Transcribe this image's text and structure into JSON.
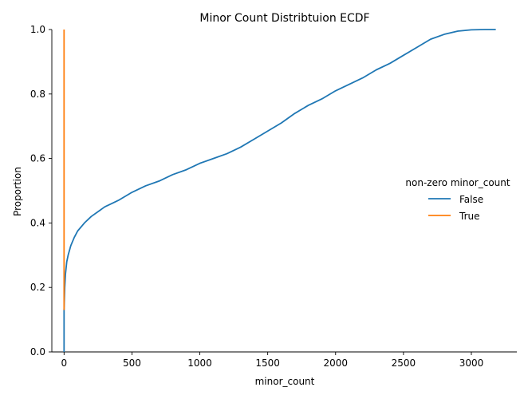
{
  "chart_data": {
    "type": "line",
    "title": "Minor Count Distribtuion ECDF",
    "xlabel": "minor_count",
    "ylabel": "Proportion",
    "xlim": [
      -90,
      3335
    ],
    "ylim": [
      0,
      1
    ],
    "x_ticks": [
      0,
      500,
      1000,
      1500,
      2000,
      2500,
      3000
    ],
    "y_ticks": [
      0.0,
      0.2,
      0.4,
      0.6,
      0.8,
      1.0
    ],
    "x_tick_labels": [
      "0",
      "500",
      "1000",
      "1500",
      "2000",
      "2500",
      "3000"
    ],
    "y_tick_labels": [
      "0.0",
      "0.2",
      "0.4",
      "0.6",
      "0.8",
      "1.0"
    ],
    "grid": false,
    "legend": {
      "title": "non-zero minor_count",
      "placement": "right",
      "entries": [
        "False",
        "True"
      ]
    },
    "series": [
      {
        "name": "False",
        "color": "#1f77b4",
        "x": [
          0,
          0,
          5,
          10,
          20,
          30,
          50,
          75,
          100,
          150,
          200,
          300,
          400,
          500,
          600,
          700,
          800,
          900,
          1000,
          1100,
          1200,
          1300,
          1400,
          1500,
          1600,
          1700,
          1800,
          1900,
          2000,
          2100,
          2200,
          2300,
          2400,
          2500,
          2600,
          2700,
          2800,
          2900,
          3000,
          3100,
          3180
        ],
        "y": [
          0.0,
          0.13,
          0.2,
          0.24,
          0.28,
          0.3,
          0.33,
          0.355,
          0.375,
          0.4,
          0.42,
          0.45,
          0.47,
          0.495,
          0.515,
          0.53,
          0.55,
          0.565,
          0.585,
          0.6,
          0.615,
          0.635,
          0.66,
          0.685,
          0.71,
          0.74,
          0.765,
          0.785,
          0.81,
          0.83,
          0.85,
          0.875,
          0.895,
          0.92,
          0.945,
          0.97,
          0.985,
          0.995,
          0.999,
          1.0,
          1.0
        ]
      },
      {
        "name": "True",
        "color": "#ff7f0e",
        "x": [
          0,
          0
        ],
        "y": [
          0.13,
          1.0
        ]
      }
    ]
  }
}
